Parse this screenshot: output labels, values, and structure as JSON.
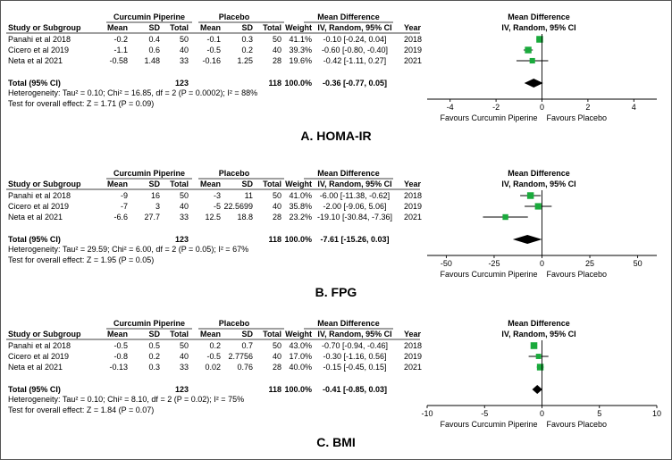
{
  "chart_data": [
    {
      "type": "forest",
      "panel_label": "A.  HOMA-IR",
      "group_headers": {
        "treatment": "Curcumin Piperine",
        "control": "Placebo",
        "effect": "Mean Difference",
        "plot": "Mean Difference"
      },
      "columns": [
        "Study or Subgroup",
        "Mean",
        "SD",
        "Total",
        "Mean",
        "SD",
        "Total",
        "Weight",
        "IV, Random, 95% CI",
        "Year",
        "IV, Random, 95% CI"
      ],
      "studies": [
        {
          "name": "Panahi et al 2018",
          "t_mean": "-0.2",
          "t_sd": "0.4",
          "t_total": "50",
          "c_mean": "-0.1",
          "c_sd": "0.3",
          "c_total": "50",
          "weight": "41.1%",
          "ci_text": "-0.10 [-0.24, 0.04]",
          "year": "2018",
          "md": -0.1,
          "lo": -0.24,
          "hi": 0.04,
          "w": 41.1
        },
        {
          "name": "Cicero et al 2019",
          "t_mean": "-1.1",
          "t_sd": "0.6",
          "t_total": "40",
          "c_mean": "-0.5",
          "c_sd": "0.2",
          "c_total": "40",
          "weight": "39.3%",
          "ci_text": "-0.60 [-0.80, -0.40]",
          "year": "2019",
          "md": -0.6,
          "lo": -0.8,
          "hi": -0.4,
          "w": 39.3
        },
        {
          "name": "Neta et al 2021",
          "t_mean": "-0.58",
          "t_sd": "1.48",
          "t_total": "33",
          "c_mean": "-0.16",
          "c_sd": "1.25",
          "c_total": "28",
          "weight": "19.6%",
          "ci_text": "-0.42 [-1.11, 0.27]",
          "year": "2021",
          "md": -0.42,
          "lo": -1.11,
          "hi": 0.27,
          "w": 19.6
        }
      ],
      "total": {
        "label": "Total (95% CI)",
        "t_total": "123",
        "c_total": "118",
        "weight": "100.0%",
        "ci_text": "-0.36 [-0.77, 0.05]",
        "md": -0.36,
        "lo": -0.77,
        "hi": 0.05
      },
      "heterogeneity": "Heterogeneity: Tau² = 0.10; Chi² = 16.85, df = 2 (P = 0.0002); I² = 88%",
      "overall_effect": "Test for overall effect: Z = 1.71 (P = 0.09)",
      "xlim": [
        -5,
        5
      ],
      "ticks": [
        -4,
        -2,
        0,
        2,
        4
      ],
      "favours_left": "Favours Curcumin Piperine",
      "favours_right": "Favours Placebo"
    },
    {
      "type": "forest",
      "panel_label": "B.  FPG",
      "group_headers": {
        "treatment": "Curcumin Piperine",
        "control": "Placebo",
        "effect": "Mean Difference",
        "plot": "Mean Difference"
      },
      "columns": [
        "Study or Subgroup",
        "Mean",
        "SD",
        "Total",
        "Mean",
        "SD",
        "Total",
        "Weight",
        "IV, Random, 95% CI",
        "Year",
        "IV, Random, 95% CI"
      ],
      "studies": [
        {
          "name": "Panahi et al 2018",
          "t_mean": "-9",
          "t_sd": "16",
          "t_total": "50",
          "c_mean": "-3",
          "c_sd": "11",
          "c_total": "50",
          "weight": "41.0%",
          "ci_text": "-6.00 [-11.38, -0.62]",
          "year": "2018",
          "md": -6.0,
          "lo": -11.38,
          "hi": -0.62,
          "w": 41.0
        },
        {
          "name": "Cicero et al 2019",
          "t_mean": "-7",
          "t_sd": "3",
          "t_total": "40",
          "c_mean": "-5",
          "c_sd": "22.5699",
          "c_total": "40",
          "weight": "35.8%",
          "ci_text": "-2.00 [-9.06, 5.06]",
          "year": "2019",
          "md": -2.0,
          "lo": -9.06,
          "hi": 5.06,
          "w": 35.8
        },
        {
          "name": "Neta et al 2021",
          "t_mean": "-6.6",
          "t_sd": "27.7",
          "t_total": "33",
          "c_mean": "12.5",
          "c_sd": "18.8",
          "c_total": "28",
          "weight": "23.2%",
          "ci_text": "-19.10 [-30.84, -7.36]",
          "year": "2021",
          "md": -19.1,
          "lo": -30.84,
          "hi": -7.36,
          "w": 23.2
        }
      ],
      "total": {
        "label": "Total (95% CI)",
        "t_total": "123",
        "c_total": "118",
        "weight": "100.0%",
        "ci_text": "-7.61 [-15.26, 0.03]",
        "md": -7.61,
        "lo": -15.26,
        "hi": 0.03
      },
      "heterogeneity": "Heterogeneity: Tau² = 29.59; Chi² = 6.00, df = 2 (P = 0.05); I² = 67%",
      "overall_effect": "Test for overall effect: Z = 1.95 (P = 0.05)",
      "xlim": [
        -60,
        60
      ],
      "ticks": [
        -50,
        -25,
        0,
        25,
        50
      ],
      "favours_left": "Favours Curcumin Piperine",
      "favours_right": "Favours Placebo"
    },
    {
      "type": "forest",
      "panel_label": "C.  BMI",
      "group_headers": {
        "treatment": "Curcumin Piperine",
        "control": "Placebo",
        "effect": "Mean Difference",
        "plot": "Mean Difference"
      },
      "columns": [
        "Study or Subgroup",
        "Mean",
        "SD",
        "Total",
        "Mean",
        "SD",
        "Total",
        "Weight",
        "IV, Random, 95% CI",
        "Year",
        "IV, Random, 95% CI"
      ],
      "studies": [
        {
          "name": "Panahi et al 2018",
          "t_mean": "-0.5",
          "t_sd": "0.5",
          "t_total": "50",
          "c_mean": "0.2",
          "c_sd": "0.7",
          "c_total": "50",
          "weight": "43.0%",
          "ci_text": "-0.70 [-0.94, -0.46]",
          "year": "2018",
          "md": -0.7,
          "lo": -0.94,
          "hi": -0.46,
          "w": 43.0
        },
        {
          "name": "Cicero et al 2019",
          "t_mean": "-0.8",
          "t_sd": "0.2",
          "t_total": "40",
          "c_mean": "-0.5",
          "c_sd": "2.7756",
          "c_total": "40",
          "weight": "17.0%",
          "ci_text": "-0.30 [-1.16, 0.56]",
          "year": "2019",
          "md": -0.3,
          "lo": -1.16,
          "hi": 0.56,
          "w": 17.0
        },
        {
          "name": "Neta et al 2021",
          "t_mean": "-0.13",
          "t_sd": "0.3",
          "t_total": "33",
          "c_mean": "0.02",
          "c_sd": "0.76",
          "c_total": "28",
          "weight": "40.0%",
          "ci_text": "-0.15 [-0.45, 0.15]",
          "year": "2021",
          "md": -0.15,
          "lo": -0.45,
          "hi": 0.15,
          "w": 40.0
        }
      ],
      "total": {
        "label": "Total (95% CI)",
        "t_total": "123",
        "c_total": "118",
        "weight": "100.0%",
        "ci_text": "-0.41 [-0.85, 0.03]",
        "md": -0.41,
        "lo": -0.85,
        "hi": 0.03
      },
      "heterogeneity": "Heterogeneity: Tau² = 0.10; Chi² = 8.10, df = 2 (P = 0.02); I² = 75%",
      "overall_effect": "Test for overall effect: Z = 1.84 (P = 0.07)",
      "xlim": [
        -10,
        10
      ],
      "ticks": [
        -10,
        -5,
        0,
        5,
        10
      ],
      "favours_left": "Favours Curcumin Piperine",
      "favours_right": "Favours Placebo"
    }
  ],
  "colors": {
    "marker": "#1aaa3c",
    "line": "#000000",
    "text": "#000000"
  }
}
